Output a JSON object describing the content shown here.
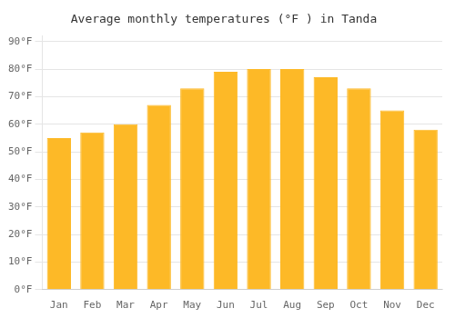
{
  "chart_data": {
    "type": "bar",
    "title": "Average monthly temperatures (°F ) in Tanda",
    "categories": [
      "Jan",
      "Feb",
      "Mar",
      "Apr",
      "May",
      "Jun",
      "Jul",
      "Aug",
      "Sep",
      "Oct",
      "Nov",
      "Dec"
    ],
    "values": [
      55,
      57,
      60,
      67,
      73,
      79,
      80,
      80,
      77,
      73,
      65,
      58
    ],
    "color": "#FDB927",
    "ylim": [
      0,
      92
    ],
    "yticks": [
      {
        "value": 0,
        "label": "0°F"
      },
      {
        "value": 10,
        "label": "10°F"
      },
      {
        "value": 20,
        "label": "20°F"
      },
      {
        "value": 30,
        "label": "30°F"
      },
      {
        "value": 40,
        "label": "40°F"
      },
      {
        "value": 50,
        "label": "50°F"
      },
      {
        "value": 60,
        "label": "60°F"
      },
      {
        "value": 70,
        "label": "70°F"
      },
      {
        "value": 80,
        "label": "80°F"
      },
      {
        "value": 90,
        "label": "90°F"
      }
    ],
    "grid": true
  }
}
